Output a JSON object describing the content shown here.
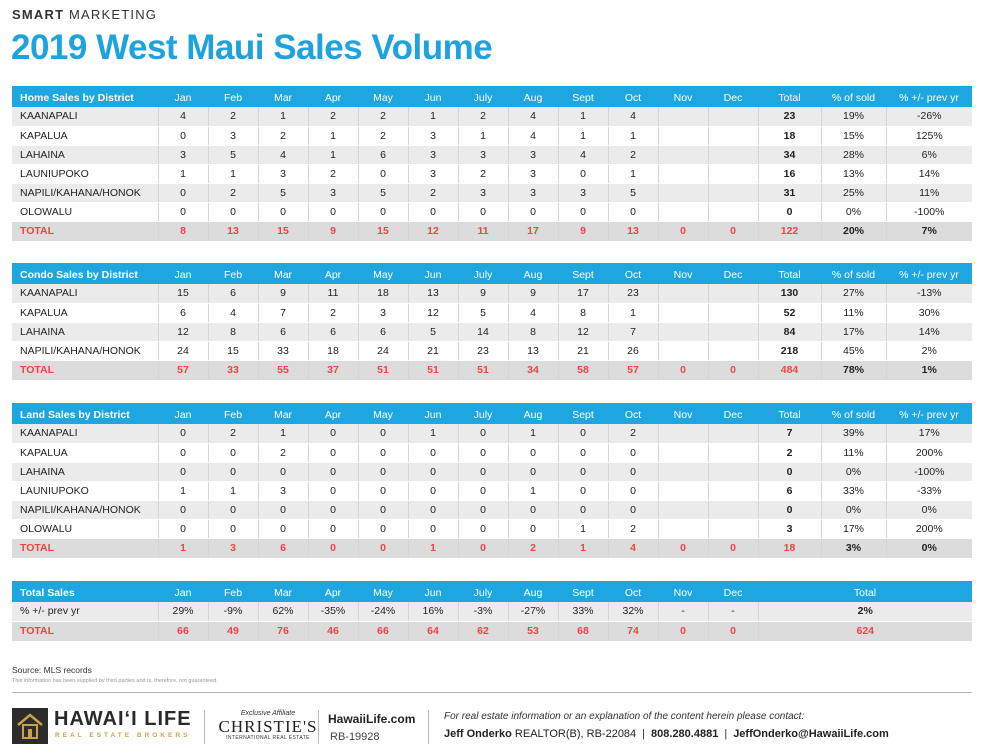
{
  "header": {
    "brand_bold": "SMART",
    "brand_rest": "MARKETING",
    "title": "2019 West Maui Sales Volume"
  },
  "months": [
    "Jan",
    "Feb",
    "Mar",
    "Apr",
    "May",
    "Jun",
    "July",
    "Aug",
    "Sept",
    "Oct",
    "Nov",
    "Dec"
  ],
  "home": {
    "title": "Home Sales by District",
    "total_label": "Total",
    "pct_sold_label": "% of sold",
    "pct_prev_label": "% +/- prev yr",
    "rows": [
      {
        "name": "KAANAPALI",
        "cells": [
          "4",
          "2",
          "1",
          "2",
          "2",
          "1",
          "2",
          "4",
          "1",
          "4",
          "",
          ""
        ],
        "total": "23",
        "pct": "19%",
        "prev": "-26%"
      },
      {
        "name": "KAPALUA",
        "cells": [
          "0",
          "3",
          "2",
          "1",
          "2",
          "3",
          "1",
          "4",
          "1",
          "1",
          "",
          ""
        ],
        "total": "18",
        "pct": "15%",
        "prev": "125%"
      },
      {
        "name": "LAHAINA",
        "cells": [
          "3",
          "5",
          "4",
          "1",
          "6",
          "3",
          "3",
          "3",
          "4",
          "2",
          "",
          ""
        ],
        "total": "34",
        "pct": "28%",
        "prev": "6%"
      },
      {
        "name": "LAUNIUPOKO",
        "cells": [
          "1",
          "1",
          "3",
          "2",
          "0",
          "3",
          "2",
          "3",
          "0",
          "1",
          "",
          ""
        ],
        "total": "16",
        "pct": "13%",
        "prev": "14%"
      },
      {
        "name": "NAPILI/KAHANA/HONOK",
        "cells": [
          "0",
          "2",
          "5",
          "3",
          "5",
          "2",
          "3",
          "3",
          "3",
          "5",
          "",
          ""
        ],
        "total": "31",
        "pct": "25%",
        "prev": "11%"
      },
      {
        "name": "OLOWALU",
        "cells": [
          "0",
          "0",
          "0",
          "0",
          "0",
          "0",
          "0",
          "0",
          "0",
          "0",
          "",
          ""
        ],
        "total": "0",
        "pct": "0%",
        "prev": "-100%"
      }
    ],
    "total_row": {
      "name": "TOTAL",
      "cells": [
        "8",
        "13",
        "15",
        "9",
        "15",
        "12",
        "11",
        "17",
        "9",
        "13",
        "0",
        "0"
      ],
      "total": "122",
      "pct": "20%",
      "prev": "7%"
    }
  },
  "condo": {
    "title": "Condo Sales by District",
    "total_label": "Total",
    "pct_sold_label": "% of sold",
    "pct_prev_label": "% +/- prev yr",
    "rows": [
      {
        "name": "KAANAPALI",
        "cells": [
          "15",
          "6",
          "9",
          "11",
          "18",
          "13",
          "9",
          "9",
          "17",
          "23",
          "",
          ""
        ],
        "total": "130",
        "pct": "27%",
        "prev": "-13%"
      },
      {
        "name": "KAPALUA",
        "cells": [
          "6",
          "4",
          "7",
          "2",
          "3",
          "12",
          "5",
          "4",
          "8",
          "1",
          "",
          ""
        ],
        "total": "52",
        "pct": "11%",
        "prev": "30%"
      },
      {
        "name": "LAHAINA",
        "cells": [
          "12",
          "8",
          "6",
          "6",
          "6",
          "5",
          "14",
          "8",
          "12",
          "7",
          "",
          ""
        ],
        "total": "84",
        "pct": "17%",
        "prev": "14%"
      },
      {
        "name": "NAPILI/KAHANA/HONOK",
        "cells": [
          "24",
          "15",
          "33",
          "18",
          "24",
          "21",
          "23",
          "13",
          "21",
          "26",
          "",
          ""
        ],
        "total": "218",
        "pct": "45%",
        "prev": "2%"
      }
    ],
    "total_row": {
      "name": "TOTAL",
      "cells": [
        "57",
        "33",
        "55",
        "37",
        "51",
        "51",
        "51",
        "34",
        "58",
        "57",
        "0",
        "0"
      ],
      "total": "484",
      "pct": "78%",
      "prev": "1%"
    }
  },
  "land": {
    "title": "Land Sales by District",
    "total_label": "Total",
    "pct_sold_label": "% of sold",
    "pct_prev_label": "% +/- prev yr",
    "rows": [
      {
        "name": "KAANAPALI",
        "cells": [
          "0",
          "2",
          "1",
          "0",
          "0",
          "1",
          "0",
          "1",
          "0",
          "2",
          "",
          ""
        ],
        "total": "7",
        "pct": "39%",
        "prev": "17%"
      },
      {
        "name": "KAPALUA",
        "cells": [
          "0",
          "0",
          "2",
          "0",
          "0",
          "0",
          "0",
          "0",
          "0",
          "0",
          "",
          ""
        ],
        "total": "2",
        "pct": "11%",
        "prev": "200%"
      },
      {
        "name": "LAHAINA",
        "cells": [
          "0",
          "0",
          "0",
          "0",
          "0",
          "0",
          "0",
          "0",
          "0",
          "0",
          "",
          ""
        ],
        "total": "0",
        "pct": "0%",
        "prev": "-100%"
      },
      {
        "name": "LAUNIUPOKO",
        "cells": [
          "1",
          "1",
          "3",
          "0",
          "0",
          "0",
          "0",
          "1",
          "0",
          "0",
          "",
          ""
        ],
        "total": "6",
        "pct": "33%",
        "prev": "-33%"
      },
      {
        "name": "NAPILI/KAHANA/HONOK",
        "cells": [
          "0",
          "0",
          "0",
          "0",
          "0",
          "0",
          "0",
          "0",
          "0",
          "0",
          "",
          ""
        ],
        "total": "0",
        "pct": "0%",
        "prev": "0%"
      },
      {
        "name": "OLOWALU",
        "cells": [
          "0",
          "0",
          "0",
          "0",
          "0",
          "0",
          "0",
          "0",
          "1",
          "2",
          "",
          ""
        ],
        "total": "3",
        "pct": "17%",
        "prev": "200%"
      }
    ],
    "total_row": {
      "name": "TOTAL",
      "cells": [
        "1",
        "3",
        "6",
        "0",
        "0",
        "1",
        "0",
        "2",
        "1",
        "4",
        "0",
        "0"
      ],
      "total": "18",
      "pct": "3%",
      "prev": "0%"
    }
  },
  "total_sales": {
    "title": "Total Sales",
    "total_label": "Total",
    "pct_row": {
      "name": "% +/- prev yr",
      "cells": [
        "29%",
        "-9%",
        "62%",
        "-35%",
        "-24%",
        "16%",
        "-3%",
        "-27%",
        "33%",
        "32%",
        "-",
        "-"
      ],
      "total": "2%"
    },
    "total_row": {
      "name": "TOTAL",
      "cells": [
        "66",
        "49",
        "76",
        "46",
        "66",
        "64",
        "62",
        "53",
        "68",
        "74",
        "0",
        "0"
      ],
      "total": "624"
    }
  },
  "notes": {
    "source": "Source: MLS records",
    "disclaimer": "This information has been supplied by third parties and is, therefore, not guaranteed."
  },
  "footer": {
    "logo_name": "HAWAI‘I LIFE",
    "logo_sub": "REAL ESTATE BROKERS",
    "affil_label": "Exclusive Affiliate",
    "affil_name": "CHRISTIE'S",
    "affil_sub": "INTERNATIONAL REAL ESTATE",
    "website": "HawaiiLife.com",
    "license": "RB-19928",
    "contact_intro": "For real estate information or an explanation of the content herein please contact:",
    "agent_name": "Jeff Onderko",
    "agent_title": "REALTOR(B), RB-22084",
    "phone": "808.280.4881",
    "email": "JeffOnderko@HawaiiLife.com"
  },
  "colors": {
    "accent": "#1ea6e0",
    "title": "#1fa3dd",
    "total_red": "#ee4444",
    "row_gray": "#ebebeb"
  }
}
